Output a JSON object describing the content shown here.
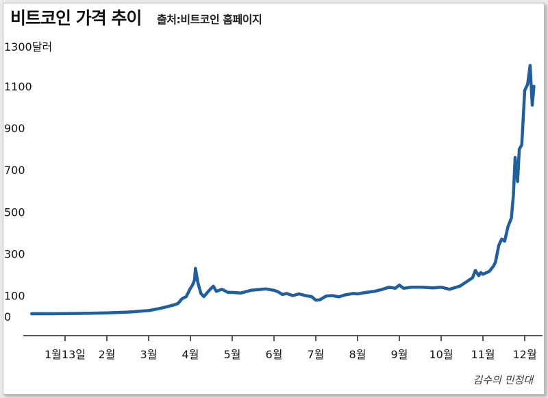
{
  "header": {
    "title": "비트코인 가격 추이",
    "source": "출처:비트코인 홈페이지"
  },
  "signature": "김수의 민정대",
  "colors": {
    "line": "#1f5f9f",
    "axis": "#222222"
  },
  "chart_data": {
    "type": "line",
    "title": "비트코인 가격 추이",
    "ylabel": "",
    "y_unit_label": "1300달러",
    "ylim": [
      0,
      1300
    ],
    "y_ticks": [
      0,
      100,
      300,
      500,
      700,
      900,
      1100
    ],
    "x_tick_labels": [
      "1월13일",
      "2월",
      "3월",
      "4월",
      "5월",
      "6월",
      "7월",
      "8월",
      "9월",
      "10월",
      "11월",
      "12월"
    ],
    "grid": false,
    "x_unit": "month index (0 = Jan 13, 1 = Feb 1, ..., 11 = Dec 1)",
    "series": [
      {
        "values_xy": [
          [
            -0.8,
            13
          ],
          [
            -0.3,
            13
          ],
          [
            0,
            14
          ],
          [
            0.5,
            15
          ],
          [
            1,
            17
          ],
          [
            1.5,
            21
          ],
          [
            2,
            28
          ],
          [
            2.3,
            40
          ],
          [
            2.45,
            47
          ],
          [
            2.6,
            55
          ],
          [
            2.7,
            62
          ],
          [
            2.8,
            85
          ],
          [
            2.9,
            95
          ],
          [
            3.0,
            135
          ],
          [
            3.05,
            150
          ],
          [
            3.1,
            175
          ],
          [
            3.12,
            230
          ],
          [
            3.18,
            160
          ],
          [
            3.25,
            110
          ],
          [
            3.32,
            95
          ],
          [
            3.45,
            125
          ],
          [
            3.55,
            145
          ],
          [
            3.62,
            120
          ],
          [
            3.75,
            130
          ],
          [
            3.9,
            115
          ],
          [
            4.0,
            115
          ],
          [
            4.2,
            112
          ],
          [
            4.45,
            125
          ],
          [
            4.6,
            128
          ],
          [
            4.8,
            132
          ],
          [
            5.0,
            125
          ],
          [
            5.1,
            118
          ],
          [
            5.2,
            105
          ],
          [
            5.3,
            110
          ],
          [
            5.45,
            100
          ],
          [
            5.6,
            108
          ],
          [
            5.75,
            100
          ],
          [
            5.9,
            95
          ],
          [
            6.0,
            78
          ],
          [
            6.1,
            80
          ],
          [
            6.25,
            98
          ],
          [
            6.4,
            100
          ],
          [
            6.55,
            94
          ],
          [
            6.7,
            103
          ],
          [
            6.9,
            110
          ],
          [
            7.0,
            108
          ],
          [
            7.2,
            115
          ],
          [
            7.4,
            120
          ],
          [
            7.6,
            130
          ],
          [
            7.75,
            140
          ],
          [
            7.9,
            135
          ],
          [
            8.0,
            150
          ],
          [
            8.1,
            135
          ],
          [
            8.3,
            140
          ],
          [
            8.55,
            140
          ],
          [
            8.8,
            137
          ],
          [
            9.0,
            140
          ],
          [
            9.2,
            130
          ],
          [
            9.45,
            145
          ],
          [
            9.6,
            165
          ],
          [
            9.75,
            185
          ],
          [
            9.82,
            220
          ],
          [
            9.9,
            195
          ],
          [
            9.95,
            210
          ],
          [
            10.0,
            202
          ],
          [
            10.15,
            215
          ],
          [
            10.25,
            240
          ],
          [
            10.3,
            260
          ],
          [
            10.38,
            340
          ],
          [
            10.45,
            370
          ],
          [
            10.52,
            360
          ],
          [
            10.6,
            430
          ],
          [
            10.68,
            470
          ],
          [
            10.73,
            580
          ],
          [
            10.77,
            760
          ],
          [
            10.83,
            645
          ],
          [
            10.87,
            800
          ],
          [
            10.93,
            820
          ],
          [
            11.0,
            1080
          ],
          [
            11.07,
            1110
          ],
          [
            11.13,
            1200
          ],
          [
            11.18,
            1010
          ],
          [
            11.22,
            1100
          ]
        ]
      }
    ]
  }
}
